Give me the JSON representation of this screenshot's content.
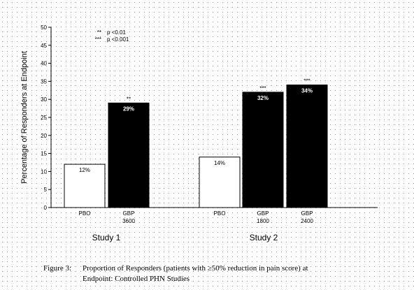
{
  "chart_data": {
    "type": "bar",
    "ylabel": "Percentage of Responders at Endpoint",
    "ylim": [
      0,
      50
    ],
    "yticks": [
      "0",
      "5",
      "10",
      "15",
      "20",
      "25",
      "30",
      "35",
      "40",
      "45",
      "50"
    ],
    "grid": "dotted background",
    "legend": [
      {
        "symbol": "**",
        "text": "p <0.01"
      },
      {
        "symbol": "***",
        "text": "p <0.001"
      }
    ],
    "groups": [
      {
        "label": "Study 1",
        "bars": [
          {
            "category": [
              "PBO"
            ],
            "value": 12,
            "value_label": "12%",
            "fill": "#ffffff",
            "sig": ""
          },
          {
            "category": [
              "GBP",
              "3600"
            ],
            "value": 29,
            "value_label": "29%",
            "fill": "#000000",
            "sig": "**"
          }
        ]
      },
      {
        "label": "Study 2",
        "bars": [
          {
            "category": [
              "PBO"
            ],
            "value": 14,
            "value_label": "14%",
            "fill": "#ffffff",
            "sig": ""
          },
          {
            "category": [
              "GBP",
              "1800"
            ],
            "value": 32,
            "value_label": "32%",
            "fill": "#000000",
            "sig": "***"
          },
          {
            "category": [
              "GBP",
              "2400"
            ],
            "value": 34,
            "value_label": "34%",
            "fill": "#000000",
            "sig": "***"
          }
        ]
      }
    ]
  },
  "caption": {
    "figure_label": "Figure 3:",
    "line1": "Proportion of Responders (patients with ≥50% reduction in pain score) at",
    "line2": "Endpoint: Controlled PHN Studies"
  }
}
